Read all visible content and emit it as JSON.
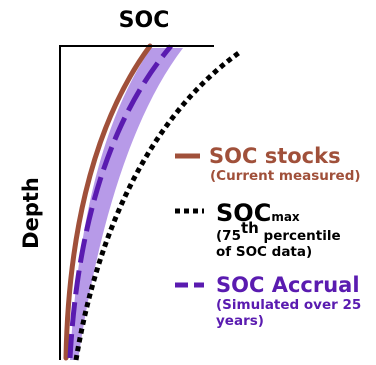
{
  "x_axis_title": "SOC",
  "y_axis_title": "Depth",
  "colors": {
    "soc_stocks": "#a0503a",
    "soc_max": "#000000",
    "soc_accrual": "#5a1bb0",
    "accrual_band": "#b79ae8",
    "axis": "#000000"
  },
  "legend": {
    "stocks": {
      "title": "SOC stocks",
      "note": "(Current measured)"
    },
    "max": {
      "title_main": "SOC",
      "title_sub": "max",
      "note_open": "(75",
      "note_sup": "th",
      "note_tail": " percentile",
      "note_line2": "of SOC data)"
    },
    "accrual": {
      "title": "SOC Accrual",
      "note_line1": "(Simulated over 25",
      "note_line2": "years)"
    }
  }
}
